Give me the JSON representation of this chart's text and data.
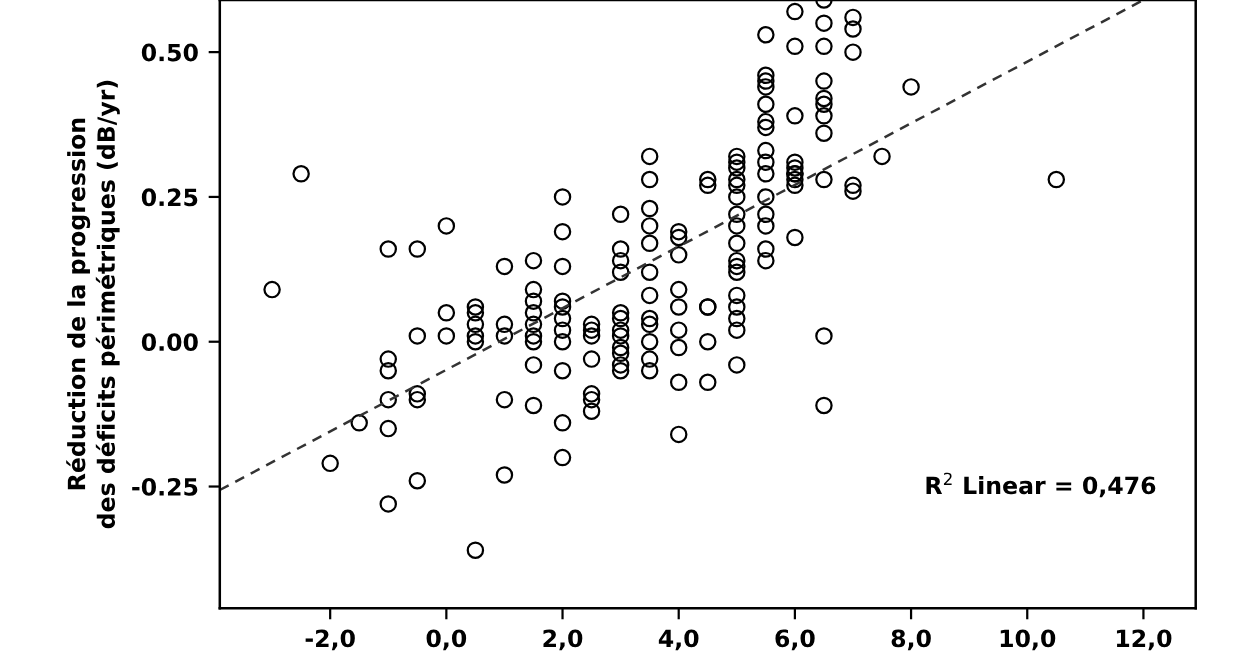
{
  "chart_data": {
    "type": "scatter",
    "ylabel": "Réduction de la progression\ndes déficits périmétriques (dB/yr)",
    "annotations": [
      "R$^{2}$ Linear = 0,476"
    ],
    "xlim": [
      -3.9,
      12.9
    ],
    "ylim": [
      -0.46,
      0.59
    ],
    "xticks": [
      {
        "value": -2,
        "label": "-2,0"
      },
      {
        "value": 0,
        "label": "0,0"
      },
      {
        "value": 2,
        "label": "2,0"
      },
      {
        "value": 4,
        "label": "4,0"
      },
      {
        "value": 6,
        "label": "6,0"
      },
      {
        "value": 8,
        "label": "8,0"
      },
      {
        "value": 10,
        "label": "10,0"
      },
      {
        "value": 12,
        "label": "12,0"
      }
    ],
    "yticks": [
      {
        "value": -0.25,
        "label": "-0.25"
      },
      {
        "value": 0,
        "label": "0.00"
      },
      {
        "value": 0.25,
        "label": "0.25"
      },
      {
        "value": 0.5,
        "label": "0.50"
      }
    ],
    "grid": false,
    "legend": false,
    "marker": "circle",
    "series": [
      {
        "color": "#000000",
        "x": [
          -2.5,
          -3.0,
          0,
          -1,
          -0.5,
          1,
          1.5,
          0,
          0,
          -0.5,
          0.5,
          0.5,
          0.5,
          0.5,
          0.5,
          1,
          1,
          1.5,
          1.5,
          1.5,
          1.5,
          1.5,
          1.5,
          1.5,
          1.5,
          -1,
          -1,
          -1,
          -0.5,
          -0.5,
          -1.5,
          -1,
          -2,
          -0.5,
          -1,
          1,
          1,
          0.5,
          2,
          2,
          2,
          2,
          2,
          2,
          2,
          2,
          2,
          2,
          2,
          2.5,
          2.5,
          2.5,
          2.5,
          2.5,
          2.5,
          2.5,
          3,
          3,
          3,
          3,
          3,
          3,
          3,
          3,
          3,
          3,
          3,
          3,
          3.5,
          3.5,
          3.5,
          3.5,
          3.5,
          3.5,
          3.5,
          3.5,
          3.5,
          3.5,
          3.5,
          3.5,
          4,
          4,
          4,
          4,
          4,
          4,
          4,
          4,
          4,
          4.5,
          4.5,
          4.5,
          4.5,
          4.5,
          4.5,
          5,
          5,
          5,
          5,
          5,
          5,
          5,
          5,
          5,
          5,
          5,
          5,
          5,
          5,
          5,
          5,
          5,
          5.5,
          5.5,
          5.5,
          5.5,
          5.5,
          5.5,
          5.5,
          5.5,
          5.5,
          5.5,
          5.5,
          5.5,
          5.5,
          5.5,
          5.5,
          6,
          6,
          6,
          6,
          6,
          6,
          6,
          6,
          6,
          6,
          6.5,
          6.5,
          6.5,
          6.5,
          6.5,
          6.5,
          6.5,
          6.5,
          6.5,
          6.5,
          6.5,
          7,
          7,
          7,
          7,
          7,
          7.5,
          8,
          10.5
        ],
        "values": [
          0.29,
          0.09,
          0.2,
          0.16,
          0.16,
          0.13,
          0.14,
          0.05,
          0.01,
          0.01,
          0.06,
          0.05,
          0.03,
          0.01,
          0.0,
          0.03,
          0.01,
          0.09,
          0.07,
          0.05,
          0.03,
          0.01,
          0.0,
          -0.04,
          -0.11,
          -0.03,
          -0.05,
          -0.1,
          -0.09,
          -0.1,
          -0.14,
          -0.15,
          -0.21,
          -0.24,
          -0.28,
          -0.1,
          -0.23,
          -0.36,
          0.25,
          0.19,
          0.13,
          0.07,
          0.06,
          0.04,
          0.02,
          0.0,
          -0.05,
          -0.14,
          -0.2,
          0.03,
          0.02,
          0.01,
          -0.03,
          -0.09,
          -0.1,
          -0.12,
          0.22,
          0.16,
          0.14,
          0.12,
          0.05,
          0.04,
          0.02,
          0.01,
          -0.01,
          -0.02,
          -0.04,
          -0.05,
          0.32,
          0.28,
          0.23,
          0.2,
          0.17,
          0.12,
          0.08,
          0.04,
          0.03,
          0.0,
          -0.03,
          -0.05,
          0.19,
          0.18,
          0.15,
          0.09,
          0.06,
          0.02,
          -0.01,
          -0.07,
          -0.16,
          0.28,
          0.27,
          0.06,
          0.06,
          0.0,
          -0.07,
          0.32,
          0.31,
          0.3,
          0.28,
          0.27,
          0.25,
          0.22,
          0.2,
          0.17,
          0.14,
          0.13,
          0.12,
          0.08,
          0.06,
          0.04,
          0.02,
          -0.04,
          0.53,
          0.46,
          0.45,
          0.44,
          0.41,
          0.38,
          0.37,
          0.33,
          0.31,
          0.29,
          0.25,
          0.22,
          0.2,
          0.16,
          0.14,
          0.57,
          0.51,
          0.39,
          0.31,
          0.3,
          0.29,
          0.29,
          0.28,
          0.27,
          0.18,
          0.59,
          0.55,
          0.51,
          0.45,
          0.42,
          0.41,
          0.39,
          0.36,
          0.28,
          0.01,
          -0.11,
          0.56,
          0.54,
          0.5,
          0.27,
          0.26,
          0.32,
          0.44,
          0.28
        ]
      },
      {
        "type": "line",
        "color": "#333333",
        "line_style": "dashed",
        "marker": "none",
        "x": [
          -3.9,
          12.0
        ],
        "values": [
          -0.256,
          0.59
        ]
      }
    ]
  }
}
